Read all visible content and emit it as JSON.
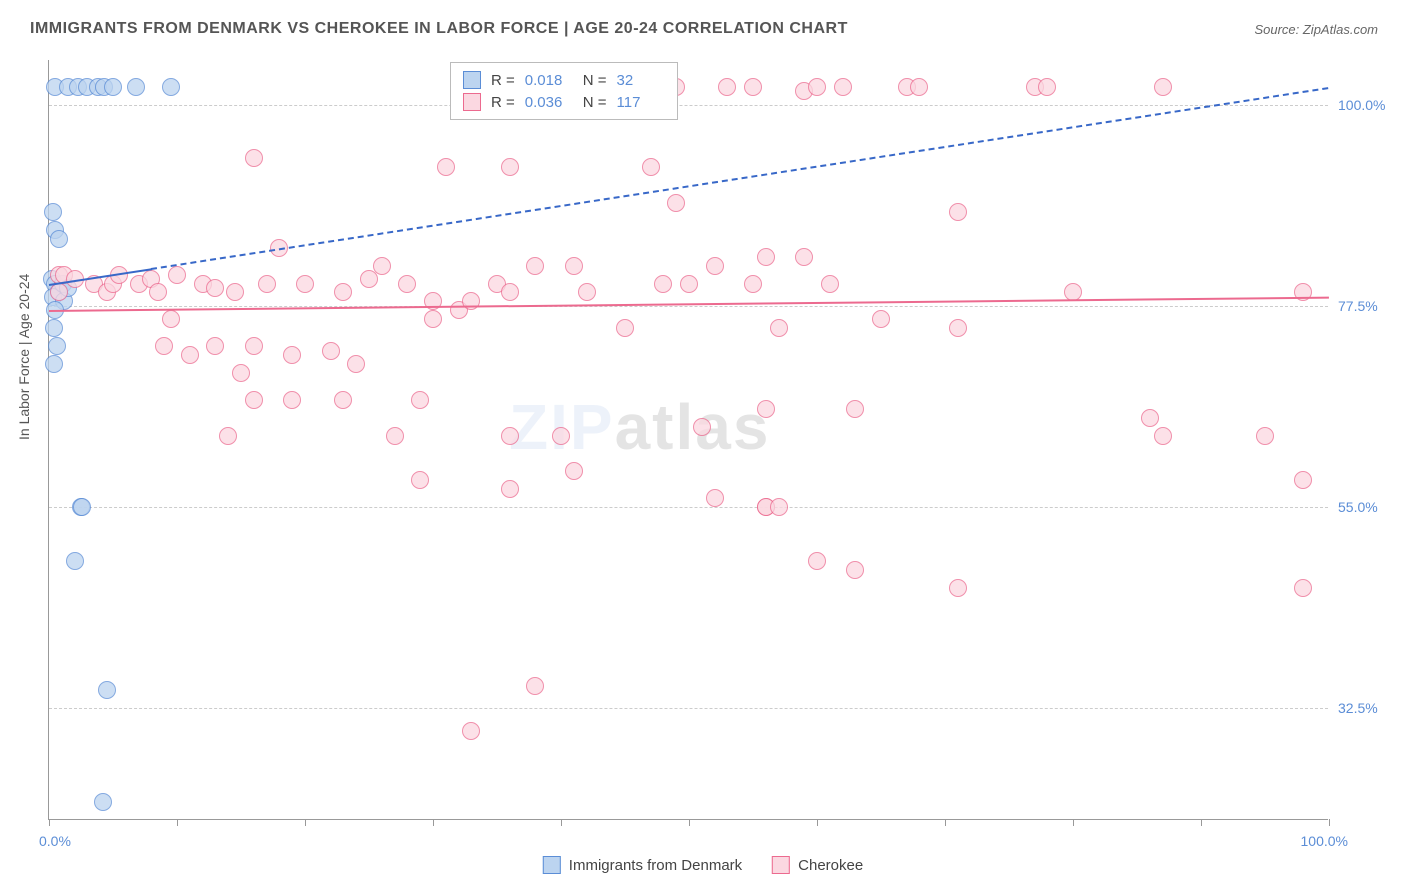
{
  "title": "IMMIGRANTS FROM DENMARK VS CHEROKEE IN LABOR FORCE | AGE 20-24 CORRELATION CHART",
  "source": "Source: ZipAtlas.com",
  "y_axis_title": "In Labor Force | Age 20-24",
  "watermark": {
    "zip": "ZIP",
    "atlas": "atlas"
  },
  "chart": {
    "type": "scatter",
    "xlim": [
      0,
      100
    ],
    "ylim": [
      20,
      105
    ],
    "x_ticks": [
      0,
      10,
      20,
      30,
      40,
      50,
      60,
      70,
      80,
      90,
      100
    ],
    "x_labels": {
      "min": "0.0%",
      "max": "100.0%"
    },
    "y_gridlines": [
      {
        "value": 32.5,
        "label": "32.5%"
      },
      {
        "value": 55.0,
        "label": "55.0%"
      },
      {
        "value": 77.5,
        "label": "77.5%"
      },
      {
        "value": 100.0,
        "label": "100.0%"
      }
    ],
    "background_color": "#ffffff",
    "grid_color": "#cccccc",
    "axis_color": "#999999",
    "label_color": "#5b8dd6",
    "point_radius": 9,
    "point_stroke_width": 1.5,
    "series": [
      {
        "name": "Immigrants from Denmark",
        "fill": "#bcd4f0",
        "stroke": "#5b8dd6",
        "trend": {
          "x1": 0,
          "y1": 80,
          "x2": 100,
          "y2": 102,
          "stroke": "#3868c8",
          "width": 2.5,
          "dash_after_x": 8
        },
        "points": [
          [
            0.5,
            102
          ],
          [
            1.5,
            102
          ],
          [
            2.3,
            102
          ],
          [
            3.0,
            102
          ],
          [
            3.8,
            102
          ],
          [
            4.3,
            102
          ],
          [
            5.0,
            102
          ],
          [
            6.8,
            102
          ],
          [
            9.5,
            102
          ],
          [
            0.3,
            88
          ],
          [
            0.5,
            86
          ],
          [
            0.8,
            85
          ],
          [
            0.2,
            80.5
          ],
          [
            0.5,
            80
          ],
          [
            0.8,
            79
          ],
          [
            0.3,
            78.5
          ],
          [
            1.2,
            78
          ],
          [
            0.5,
            77
          ],
          [
            0.4,
            75
          ],
          [
            0.6,
            73
          ],
          [
            0.4,
            71
          ],
          [
            1.1,
            80
          ],
          [
            1.5,
            79.5
          ],
          [
            2.5,
            55
          ],
          [
            2.6,
            55
          ],
          [
            2.0,
            49
          ],
          [
            4.5,
            34.5
          ],
          [
            4.2,
            22
          ]
        ]
      },
      {
        "name": "Cherokee",
        "fill": "#fbd8e1",
        "stroke": "#ec6a8f",
        "trend": {
          "x1": 0,
          "y1": 77,
          "x2": 100,
          "y2": 78.5,
          "stroke": "#ec6a8f",
          "width": 2.5
        },
        "points": [
          [
            49,
            102
          ],
          [
            53,
            102
          ],
          [
            55,
            102
          ],
          [
            59,
            101.5
          ],
          [
            60,
            102
          ],
          [
            62,
            102
          ],
          [
            67,
            102
          ],
          [
            68,
            102
          ],
          [
            77,
            102
          ],
          [
            78,
            102
          ],
          [
            87,
            102
          ],
          [
            16,
            94
          ],
          [
            31,
            93
          ],
          [
            36,
            93
          ],
          [
            47,
            93
          ],
          [
            49,
            89
          ],
          [
            71,
            88
          ],
          [
            0.8,
            81
          ],
          [
            1.2,
            81
          ],
          [
            0.8,
            79
          ],
          [
            2,
            80.5
          ],
          [
            3.5,
            80
          ],
          [
            4.5,
            79
          ],
          [
            5,
            80
          ],
          [
            5.5,
            81
          ],
          [
            7,
            80
          ],
          [
            8,
            80.5
          ],
          [
            8.5,
            79
          ],
          [
            9.5,
            76
          ],
          [
            10,
            81
          ],
          [
            12,
            80
          ],
          [
            13,
            79.5
          ],
          [
            14.5,
            79
          ],
          [
            17,
            80
          ],
          [
            18,
            84
          ],
          [
            20,
            80
          ],
          [
            23,
            79
          ],
          [
            25,
            80.5
          ],
          [
            26,
            82
          ],
          [
            28,
            80
          ],
          [
            30,
            78
          ],
          [
            30,
            76
          ],
          [
            32,
            77
          ],
          [
            33,
            78
          ],
          [
            35,
            80
          ],
          [
            36,
            79
          ],
          [
            38,
            82
          ],
          [
            41,
            82
          ],
          [
            42,
            79
          ],
          [
            45,
            75
          ],
          [
            48,
            80
          ],
          [
            50,
            80
          ],
          [
            52,
            82
          ],
          [
            55,
            80
          ],
          [
            56,
            83
          ],
          [
            57,
            75
          ],
          [
            59,
            83
          ],
          [
            61,
            80
          ],
          [
            65,
            76
          ],
          [
            71,
            75
          ],
          [
            80,
            79
          ],
          [
            98,
            79
          ],
          [
            9,
            73
          ],
          [
            11,
            72
          ],
          [
            13,
            73
          ],
          [
            15,
            70
          ],
          [
            16,
            73
          ],
          [
            19,
            72
          ],
          [
            22,
            72.5
          ],
          [
            24,
            71
          ],
          [
            16,
            67
          ],
          [
            19,
            67
          ],
          [
            23,
            67
          ],
          [
            29,
            67
          ],
          [
            14,
            63
          ],
          [
            27,
            63
          ],
          [
            36,
            63
          ],
          [
            40,
            63
          ],
          [
            51,
            64
          ],
          [
            56,
            66
          ],
          [
            63,
            66
          ],
          [
            86,
            65
          ],
          [
            87,
            63
          ],
          [
            95,
            63
          ],
          [
            29,
            58
          ],
          [
            36,
            57
          ],
          [
            41,
            59
          ],
          [
            52,
            56
          ],
          [
            56,
            55
          ],
          [
            98,
            58
          ],
          [
            56,
            55
          ],
          [
            57,
            55
          ],
          [
            60,
            49
          ],
          [
            63,
            48
          ],
          [
            71,
            46
          ],
          [
            98,
            46
          ],
          [
            38,
            35
          ],
          [
            33,
            30
          ]
        ]
      }
    ]
  },
  "stats_box": {
    "rows": [
      {
        "swatch_fill": "#bcd4f0",
        "swatch_stroke": "#5b8dd6",
        "r": "0.018",
        "n": "32"
      },
      {
        "swatch_fill": "#fbd8e1",
        "swatch_stroke": "#ec6a8f",
        "r": "0.036",
        "n": "117"
      }
    ],
    "labels": {
      "r": "R =",
      "n": "N ="
    }
  },
  "legend": [
    {
      "swatch_fill": "#bcd4f0",
      "swatch_stroke": "#5b8dd6",
      "label": "Immigrants from Denmark"
    },
    {
      "swatch_fill": "#fbd8e1",
      "swatch_stroke": "#ec6a8f",
      "label": "Cherokee"
    }
  ]
}
